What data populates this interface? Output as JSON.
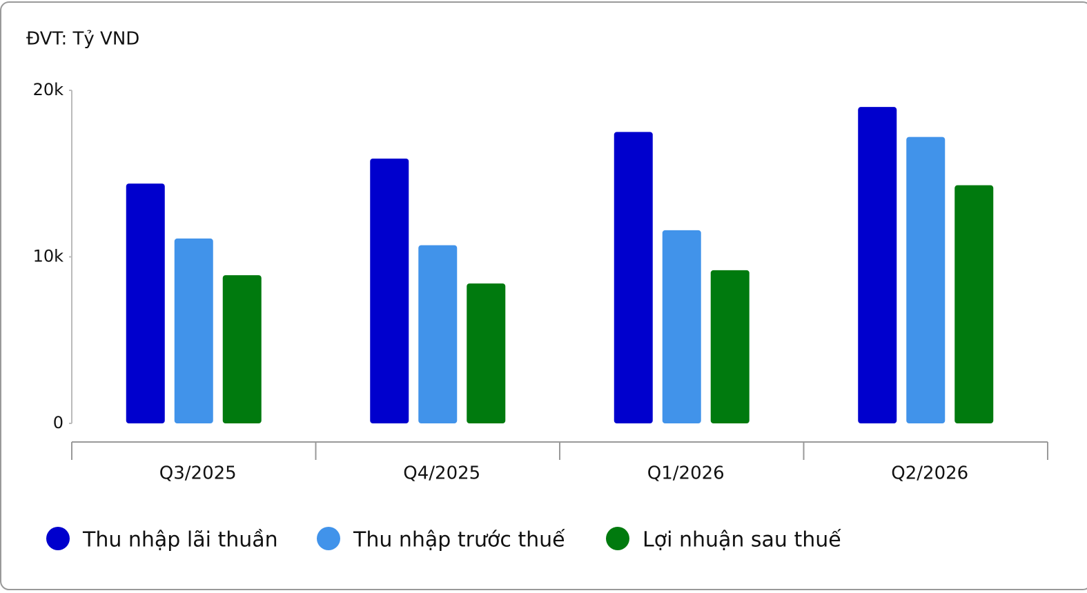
{
  "chart_data": {
    "type": "bar",
    "title": "ĐVT: Tỷ VND",
    "categories": [
      "Q3/2025",
      "Q4/2025",
      "Q1/2026",
      "Q2/2026"
    ],
    "series": [
      {
        "name": "Thu nhập lãi thuần",
        "color": "#0000cd",
        "values": [
          14400,
          15900,
          17500,
          19000
        ]
      },
      {
        "name": "Thu nhập trước thuế",
        "color": "#4193ea",
        "values": [
          11100,
          10700,
          11600,
          17200
        ]
      },
      {
        "name": "Lợi nhuận sau thuế",
        "color": "#007a0e",
        "values": [
          8900,
          8400,
          9200,
          14300
        ]
      }
    ],
    "ylim": [
      0,
      20000
    ],
    "yticks": [
      0,
      {
        "value": 10000,
        "label": "10k"
      },
      {
        "value": 20000,
        "label": "20k"
      }
    ],
    "legend": "bottom"
  }
}
